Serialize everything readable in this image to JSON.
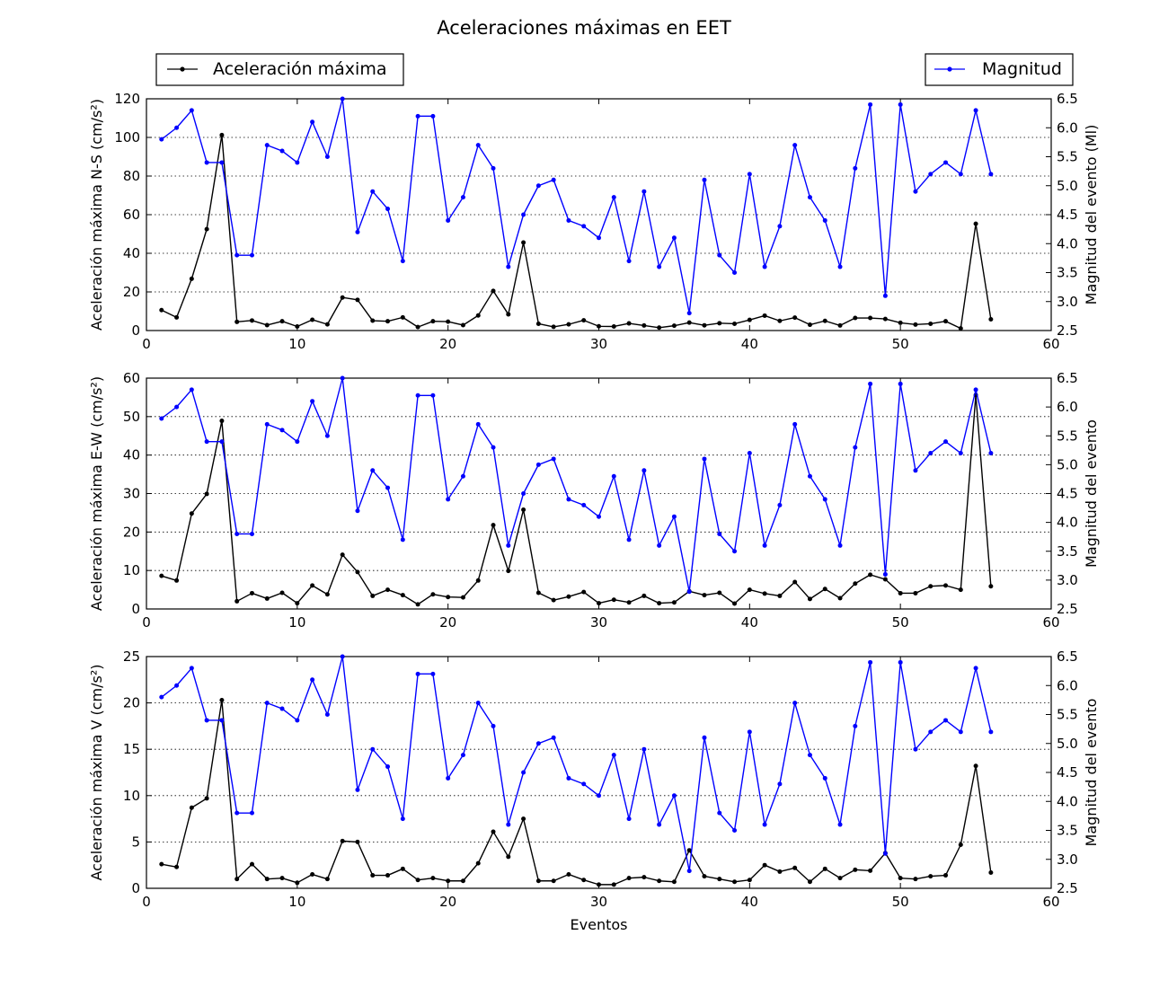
{
  "title": "Aceleraciones máximas en EET",
  "legend": {
    "left_label": "Aceleración máxima",
    "right_label": "Magnitud",
    "left_position": "top-left",
    "right_position": "top-right"
  },
  "colors": {
    "aceleracion": "#000000",
    "magnitud": "#0000ff",
    "grid": "#000000"
  },
  "xlabel": "Eventos",
  "chart_data": [
    {
      "type": "line",
      "x": [
        1,
        2,
        3,
        4,
        5,
        6,
        7,
        8,
        9,
        10,
        11,
        12,
        13,
        14,
        15,
        16,
        17,
        18,
        19,
        20,
        21,
        22,
        23,
        24,
        25,
        26,
        27,
        28,
        29,
        30,
        31,
        32,
        33,
        34,
        35,
        36,
        37,
        38,
        39,
        40,
        41,
        42,
        43,
        44,
        45,
        46,
        47,
        48,
        49,
        50,
        51,
        52,
        53,
        54,
        55,
        56
      ],
      "xlim": [
        0,
        60
      ],
      "xticks": [
        0,
        10,
        20,
        30,
        40,
        50,
        60
      ],
      "xlabel": "",
      "ylabel": "Aceleración máxima N-S (cm/s²)",
      "ylim": [
        0,
        120
      ],
      "yticks": [
        0,
        20,
        40,
        60,
        80,
        100,
        120
      ],
      "y2label": "Magnitud del evento (Ml)",
      "y2lim": [
        2.5,
        6.5
      ],
      "y2ticks": [
        "2.5",
        "3.0",
        "3.5",
        "4.0",
        "4.5",
        "5.0",
        "5.5",
        "6.0",
        "6.5"
      ],
      "grid": "horizontal dotted",
      "series": [
        {
          "name": "Aceleración máxima",
          "axis": "left",
          "values": [
            10.6,
            6.8,
            26.8,
            52.5,
            101.2,
            4.5,
            5.2,
            2.8,
            4.8,
            2.1,
            5.6,
            3.2,
            17.1,
            15.9,
            5.1,
            4.8,
            6.8,
            1.8,
            4.8,
            4.6,
            2.8,
            7.8,
            20.5,
            8.4,
            45.6,
            3.5,
            1.9,
            3.2,
            5.3,
            2.2,
            2.1,
            3.7,
            2.6,
            1.5,
            2.5,
            4.1,
            2.7,
            3.8,
            3.5,
            5.5,
            7.7,
            5.0,
            6.7,
            3.0,
            5.0,
            2.6,
            6.5,
            6.5,
            6.0,
            4.0,
            3.1,
            3.5,
            4.8,
            1.1,
            55.3,
            5.8
          ]
        },
        {
          "name": "Magnitud",
          "axis": "right",
          "values": [
            5.8,
            6.0,
            6.3,
            5.4,
            5.4,
            3.8,
            3.8,
            5.7,
            5.6,
            5.4,
            6.1,
            5.5,
            6.5,
            4.2,
            4.9,
            4.6,
            3.7,
            6.2,
            6.2,
            4.4,
            4.8,
            5.7,
            5.3,
            3.6,
            4.5,
            5.0,
            5.1,
            4.4,
            4.3,
            4.1,
            4.8,
            3.7,
            4.9,
            3.6,
            4.1,
            2.8,
            5.1,
            3.8,
            3.5,
            5.2,
            3.6,
            4.3,
            5.7,
            4.8,
            4.4,
            3.6,
            5.3,
            6.4,
            3.1,
            6.4,
            4.9,
            5.2,
            5.4,
            5.2,
            6.3,
            5.2
          ]
        }
      ]
    },
    {
      "type": "line",
      "x": [
        1,
        2,
        3,
        4,
        5,
        6,
        7,
        8,
        9,
        10,
        11,
        12,
        13,
        14,
        15,
        16,
        17,
        18,
        19,
        20,
        21,
        22,
        23,
        24,
        25,
        26,
        27,
        28,
        29,
        30,
        31,
        32,
        33,
        34,
        35,
        36,
        37,
        38,
        39,
        40,
        41,
        42,
        43,
        44,
        45,
        46,
        47,
        48,
        49,
        50,
        51,
        52,
        53,
        54,
        55,
        56
      ],
      "xlim": [
        0,
        60
      ],
      "xticks": [
        0,
        10,
        20,
        30,
        40,
        50,
        60
      ],
      "xlabel": "",
      "ylabel": "Aceleración máxima E-W (cm/s²)",
      "ylim": [
        0,
        60
      ],
      "yticks": [
        0,
        10,
        20,
        30,
        40,
        50,
        60
      ],
      "y2label": "Magnitud del evento",
      "y2lim": [
        2.5,
        6.5
      ],
      "y2ticks": [
        "2.5",
        "3.0",
        "3.5",
        "4.0",
        "4.5",
        "5.0",
        "5.5",
        "6.0",
        "6.5"
      ],
      "grid": "horizontal dotted",
      "series": [
        {
          "name": "Aceleración máxima",
          "axis": "left",
          "values": [
            8.6,
            7.4,
            24.8,
            29.9,
            48.9,
            2.0,
            4.1,
            2.7,
            4.2,
            1.5,
            6.1,
            3.8,
            14.1,
            9.6,
            3.4,
            5.0,
            3.6,
            1.2,
            3.8,
            3.1,
            3.0,
            7.4,
            21.8,
            9.9,
            25.8,
            4.2,
            2.3,
            3.2,
            4.4,
            1.5,
            2.4,
            1.7,
            3.4,
            1.5,
            1.7,
            4.6,
            3.6,
            4.2,
            1.4,
            5.0,
            4.0,
            3.4,
            7.0,
            2.6,
            5.2,
            2.8,
            6.6,
            8.9,
            7.7,
            4.1,
            4.1,
            5.9,
            6.1,
            5.0,
            55.6,
            5.9
          ]
        },
        {
          "name": "Magnitud",
          "axis": "right",
          "values": [
            5.8,
            6.0,
            6.3,
            5.4,
            5.4,
            3.8,
            3.8,
            5.7,
            5.6,
            5.4,
            6.1,
            5.5,
            6.5,
            4.2,
            4.9,
            4.6,
            3.7,
            6.2,
            6.2,
            4.4,
            4.8,
            5.7,
            5.3,
            3.6,
            4.5,
            5.0,
            5.1,
            4.4,
            4.3,
            4.1,
            4.8,
            3.7,
            4.9,
            3.6,
            4.1,
            2.8,
            5.1,
            3.8,
            3.5,
            5.2,
            3.6,
            4.3,
            5.7,
            4.8,
            4.4,
            3.6,
            5.3,
            6.4,
            3.1,
            6.4,
            4.9,
            5.2,
            5.4,
            5.2,
            6.3,
            5.2
          ]
        }
      ]
    },
    {
      "type": "line",
      "x": [
        1,
        2,
        3,
        4,
        5,
        6,
        7,
        8,
        9,
        10,
        11,
        12,
        13,
        14,
        15,
        16,
        17,
        18,
        19,
        20,
        21,
        22,
        23,
        24,
        25,
        26,
        27,
        28,
        29,
        30,
        31,
        32,
        33,
        34,
        35,
        36,
        37,
        38,
        39,
        40,
        41,
        42,
        43,
        44,
        45,
        46,
        47,
        48,
        49,
        50,
        51,
        52,
        53,
        54,
        55,
        56
      ],
      "xlim": [
        0,
        60
      ],
      "xticks": [
        0,
        10,
        20,
        30,
        40,
        50,
        60
      ],
      "xlabel": "Eventos",
      "ylabel": "Aceleración máxima V (cm/s²)",
      "ylim": [
        0,
        25
      ],
      "yticks": [
        0,
        5,
        10,
        15,
        20,
        25
      ],
      "y2label": "Magnitud del evento",
      "y2lim": [
        2.5,
        6.5
      ],
      "y2ticks": [
        "2.5",
        "3.0",
        "3.5",
        "4.0",
        "4.5",
        "5.0",
        "5.5",
        "6.0",
        "6.5"
      ],
      "grid": "horizontal dotted",
      "series": [
        {
          "name": "Aceleración máxima",
          "axis": "left",
          "values": [
            2.6,
            2.3,
            8.7,
            9.7,
            20.3,
            1.0,
            2.6,
            1.0,
            1.1,
            0.6,
            1.5,
            1.0,
            5.1,
            5.0,
            1.4,
            1.4,
            2.1,
            0.9,
            1.1,
            0.8,
            0.8,
            2.7,
            6.1,
            3.4,
            7.5,
            0.8,
            0.8,
            1.5,
            0.9,
            0.4,
            0.4,
            1.1,
            1.2,
            0.8,
            0.7,
            4.1,
            1.3,
            1.0,
            0.7,
            0.9,
            2.5,
            1.8,
            2.2,
            0.7,
            2.1,
            1.1,
            2.0,
            1.9,
            3.8,
            1.1,
            1.0,
            1.3,
            1.4,
            4.7,
            13.2,
            1.7
          ]
        },
        {
          "name": "Magnitud",
          "axis": "right",
          "values": [
            5.8,
            6.0,
            6.3,
            5.4,
            5.4,
            3.8,
            3.8,
            5.7,
            5.6,
            5.4,
            6.1,
            5.5,
            6.5,
            4.2,
            4.9,
            4.6,
            3.7,
            6.2,
            6.2,
            4.4,
            4.8,
            5.7,
            5.3,
            3.6,
            4.5,
            5.0,
            5.1,
            4.4,
            4.3,
            4.1,
            4.8,
            3.7,
            4.9,
            3.6,
            4.1,
            2.8,
            5.1,
            3.8,
            3.5,
            5.2,
            3.6,
            4.3,
            5.7,
            4.8,
            4.4,
            3.6,
            5.3,
            6.4,
            3.1,
            6.4,
            4.9,
            5.2,
            5.4,
            5.2,
            6.3,
            5.2
          ]
        }
      ]
    }
  ]
}
